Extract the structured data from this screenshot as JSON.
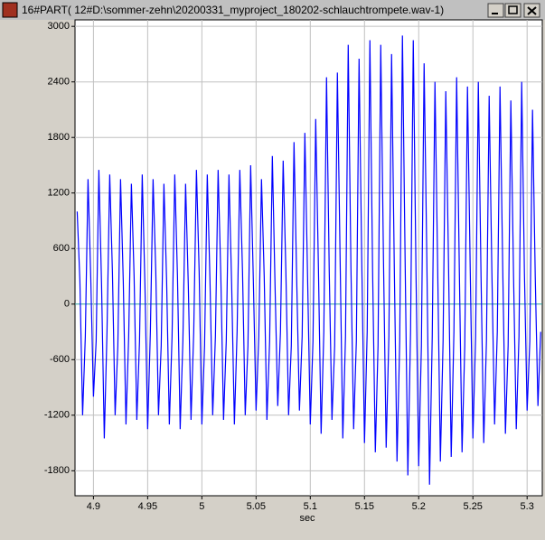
{
  "chart_data": {
    "type": "line",
    "title": "16#PART( 12#D:\\sommer-zehn\\20200331_myproject_180202-schlauchtrompete.wav-1)",
    "xlabel": "sec",
    "xlim": [
      4.883,
      5.314
    ],
    "xticks": [
      4.9,
      4.95,
      5,
      5.05,
      5.1,
      5.15,
      5.2,
      5.25,
      5.3
    ],
    "ylim": [
      -2070,
      3070
    ],
    "yticks": [
      -1800,
      -1200,
      -600,
      0,
      600,
      1200,
      1800,
      2400,
      3000
    ],
    "grid": true,
    "zero_line_color": "#2a9a9a",
    "x": [
      4.885,
      4.8875,
      4.89,
      4.8925,
      4.895,
      4.8975,
      4.9,
      4.9025,
      4.905,
      4.9075,
      4.91,
      4.9125,
      4.915,
      4.9175,
      4.92,
      4.9225,
      4.925,
      4.9275,
      4.93,
      4.9325,
      4.935,
      4.9375,
      4.94,
      4.9425,
      4.945,
      4.9475,
      4.95,
      4.9525,
      4.955,
      4.9575,
      4.96,
      4.9625,
      4.965,
      4.9675,
      4.97,
      4.9725,
      4.975,
      4.9775,
      4.98,
      4.9825,
      4.985,
      4.9875,
      4.99,
      4.9925,
      4.995,
      4.9975,
      5,
      5.0025,
      5.005,
      5.0075,
      5.01,
      5.0125,
      5.015,
      5.0175,
      5.02,
      5.0225,
      5.025,
      5.0275,
      5.03,
      5.0325,
      5.035,
      5.0375,
      5.04,
      5.0425,
      5.045,
      5.0475,
      5.05,
      5.0525,
      5.055,
      5.0575,
      5.06,
      5.0625,
      5.065,
      5.0675,
      5.07,
      5.0725,
      5.075,
      5.0775,
      5.08,
      5.0825,
      5.085,
      5.0875,
      5.09,
      5.0925,
      5.095,
      5.0975,
      5.1,
      5.1025,
      5.105,
      5.1075,
      5.11,
      5.1125,
      5.115,
      5.1175,
      5.12,
      5.1225,
      5.125,
      5.1275,
      5.13,
      5.1325,
      5.135,
      5.1375,
      5.14,
      5.1425,
      5.145,
      5.1475,
      5.15,
      5.1525,
      5.155,
      5.1575,
      5.16,
      5.1625,
      5.165,
      5.1675,
      5.17,
      5.1725,
      5.175,
      5.1775,
      5.18,
      5.1825,
      5.185,
      5.1875,
      5.19,
      5.1925,
      5.195,
      5.1975,
      5.2,
      5.2025,
      5.205,
      5.2075,
      5.21,
      5.2125,
      5.215,
      5.2175,
      5.22,
      5.2225,
      5.225,
      5.2275,
      5.23,
      5.2325,
      5.235,
      5.2375,
      5.24,
      5.2425,
      5.245,
      5.2475,
      5.25,
      5.2525,
      5.255,
      5.2575,
      5.26,
      5.2625,
      5.265,
      5.2675,
      5.27,
      5.2725,
      5.275,
      5.2775,
      5.28,
      5.2825,
      5.285,
      5.2875,
      5.29,
      5.2925,
      5.295,
      5.2975,
      5.3,
      5.3025,
      5.305,
      5.3075,
      5.31,
      5.3125
    ],
    "series": [
      {
        "name": "wav-1",
        "color": "#0000ff",
        "values": [
          1000,
          250,
          -1200,
          -350,
          1350,
          300,
          -1000,
          -400,
          1450,
          200,
          -1450,
          -300,
          1400,
          350,
          -1200,
          -450,
          1350,
          250,
          -1300,
          -350,
          1300,
          300,
          -1250,
          -400,
          1400,
          200,
          -1350,
          -300,
          1350,
          350,
          -1200,
          -450,
          1300,
          250,
          -1300,
          -350,
          1400,
          300,
          -1350,
          -400,
          1300,
          200,
          -1250,
          -300,
          1450,
          350,
          -1300,
          -450,
          1400,
          250,
          -1200,
          -350,
          1450,
          300,
          -1250,
          -400,
          1400,
          200,
          -1300,
          -300,
          1450,
          350,
          -1200,
          -450,
          1500,
          250,
          -1150,
          -350,
          1350,
          300,
          -1250,
          -400,
          1600,
          200,
          -1100,
          -300,
          1550,
          350,
          -1200,
          -450,
          1750,
          250,
          -1150,
          -350,
          1850,
          300,
          -1300,
          -400,
          2000,
          400,
          -1400,
          -300,
          2450,
          350,
          -1250,
          -450,
          2500,
          500,
          -1450,
          -350,
          2800,
          400,
          -1350,
          -400,
          2650,
          450,
          -1500,
          -300,
          2850,
          350,
          -1600,
          -450,
          2800,
          500,
          -1550,
          -350,
          2700,
          400,
          -1700,
          -400,
          2900,
          450,
          -1850,
          -300,
          2850,
          350,
          -1750,
          -450,
          2600,
          500,
          -1950,
          -350,
          2400,
          400,
          -1700,
          -400,
          2300,
          450,
          -1650,
          -300,
          2450,
          350,
          -1600,
          -450,
          2350,
          400,
          -1450,
          -350,
          2400,
          300,
          -1500,
          -400,
          2250,
          350,
          -1300,
          -300,
          2350,
          400,
          -1400,
          -450,
          2200,
          300,
          -1350,
          -350,
          2400,
          350,
          -1150,
          -400,
          2100,
          300,
          -1100,
          -300
        ]
      }
    ]
  }
}
